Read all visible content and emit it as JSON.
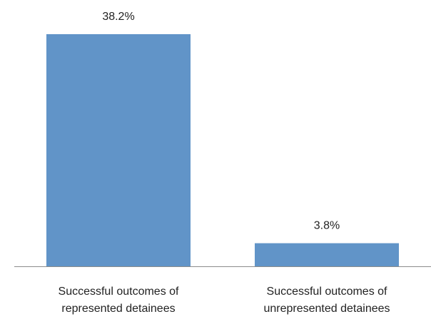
{
  "chart_data": {
    "type": "bar",
    "categories": [
      [
        "Successful outcomes of",
        "represented detainees"
      ],
      [
        "Successful outcomes of",
        "unrepresented detainees"
      ]
    ],
    "values": [
      38.2,
      3.8
    ],
    "data_labels": [
      "38.2%",
      "3.8%"
    ],
    "title": "",
    "xlabel": "",
    "ylabel": "",
    "ylim": [
      0,
      38.2
    ],
    "grid": false,
    "legend": "none",
    "colors": {
      "bar": "#6194c8",
      "axis": "#8c8c8c"
    }
  }
}
